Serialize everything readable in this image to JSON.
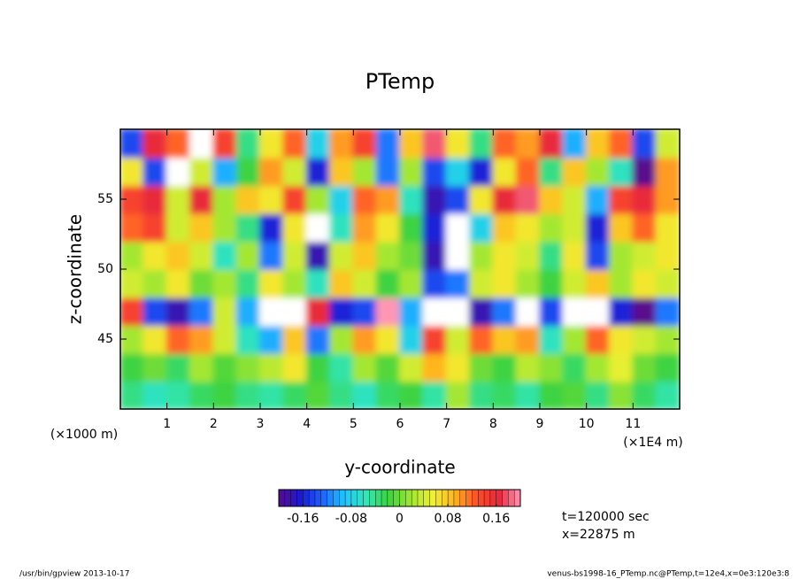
{
  "chart_data": {
    "type": "heatmap",
    "title": "PTemp",
    "x_label": "y-coordinate",
    "y_label": "z-coordinate",
    "x_unit": "(×1E4 m)",
    "y_unit": "(×1000 m)",
    "xlim": [
      0,
      12
    ],
    "ylim": [
      40,
      60
    ],
    "xticks": [
      1,
      2,
      3,
      4,
      5,
      6,
      7,
      8,
      9,
      10,
      11
    ],
    "yticks": [
      45,
      50,
      55
    ],
    "x": [
      0.25,
      0.75,
      1.25,
      1.75,
      2.25,
      2.75,
      3.25,
      3.75,
      4.25,
      4.75,
      5.25,
      5.75,
      6.25,
      6.75,
      7.25,
      7.75,
      8.25,
      8.75,
      9.25,
      9.75,
      10.25,
      10.75,
      11.25,
      11.75
    ],
    "y": [
      41,
      43,
      45,
      47,
      49,
      51,
      53,
      55,
      57,
      59
    ],
    "z": [
      [
        -0.04,
        -0.06,
        -0.05,
        -0.03,
        -0.02,
        -0.04,
        -0.05,
        -0.03,
        -0.01,
        -0.04,
        -0.06,
        -0.03,
        -0.02,
        -0.05,
        0.02,
        -0.04,
        -0.03,
        -0.05,
        -0.02,
        -0.01,
        -0.04,
        0.01,
        -0.03,
        -0.05
      ],
      [
        -0.02,
        0,
        -0.03,
        0.02,
        -0.01,
        0.01,
        0.03,
        0.06,
        -0.02,
        -0.05,
        0.02,
        -0.01,
        0.04,
        0.09,
        0.06,
        0,
        -0.02,
        0.03,
        0.01,
        -0.03,
        0.02,
        0.05,
        0,
        -0.02
      ],
      [
        0.02,
        0.06,
        0.12,
        0.1,
        0.04,
        -0.06,
        -0.1,
        0.08,
        -0.12,
        0.02,
        0.1,
        0.06,
        -0.08,
        0.14,
        0.04,
        0.12,
        0.08,
        0.1,
        -0.06,
        0.02,
        0.12,
        0.06,
        0.04,
        0.02
      ],
      [
        0.14,
        -0.14,
        -0.18,
        -0.12,
        0.04,
        -0.1,
        0.22,
        0.24,
        0.16,
        -0.16,
        -0.14,
        0.2,
        -0.1,
        0.22,
        0.24,
        -0.18,
        -0.12,
        0.22,
        -0.14,
        0.24,
        -0.22,
        -0.16,
        -0.2,
        -0.12
      ],
      [
        0.04,
        0.02,
        0.06,
        0,
        0.02,
        -0.04,
        0.06,
        0.02,
        -0.06,
        0.08,
        0.04,
        -0.02,
        0.02,
        -0.14,
        -0.12,
        0.04,
        0.06,
        0.02,
        -0.02,
        0.04,
        0.08,
        0.02,
        0.06,
        0.04
      ],
      [
        0.02,
        0.06,
        0.08,
        0.04,
        -0.06,
        0.02,
        -0.12,
        0.04,
        -0.18,
        0.04,
        0.08,
        0.02,
        0,
        -0.18,
        -0.24,
        0.02,
        0.06,
        0.04,
        -0.04,
        0.06,
        -0.14,
        0.02,
        0.04,
        0.06
      ],
      [
        0.12,
        0.14,
        0.04,
        0.08,
        0.02,
        -0.04,
        -0.16,
        0.06,
        -0.24,
        -0.06,
        0.1,
        0.06,
        -0.02,
        -0.16,
        -0.22,
        -0.08,
        0.08,
        0.06,
        0.02,
        0.04,
        -0.16,
        0.08,
        0.12,
        0.06
      ],
      [
        0.14,
        0.16,
        0.04,
        0.16,
        0.02,
        0.08,
        0.06,
        0.14,
        0.02,
        -0.08,
        0.12,
        0.1,
        -0.06,
        -0.18,
        -0.14,
        0.06,
        0.16,
        0.18,
        0.08,
        0.04,
        -0.1,
        0.14,
        0.16,
        0.1
      ],
      [
        0.06,
        -0.14,
        -0.22,
        0.04,
        -0.1,
        -0.02,
        0.1,
        0.04,
        -0.16,
        0.08,
        0.02,
        -0.12,
        0.02,
        -0.14,
        -0.08,
        -0.16,
        0.06,
        0.12,
        -0.04,
        0.08,
        0.02,
        -0.06,
        -0.2,
        0.1
      ],
      [
        -0.14,
        0.16,
        0.12,
        0.22,
        0.14,
        -0.04,
        0.06,
        0.12,
        -0.08,
        0.1,
        0.14,
        -0.12,
        0.08,
        0.18,
        0.06,
        -0.04,
        0.12,
        0.1,
        0.16,
        -0.1,
        0.08,
        0.12,
        -0.14,
        0.04
      ]
    ],
    "clim": [
      -0.2,
      0.2
    ],
    "contour_interval": 0.01,
    "cticks": [
      -0.16,
      -0.08,
      0,
      0.08,
      0.16
    ],
    "colors": [
      "#5a0a8c",
      "#1a1ad2",
      "#1e64ff",
      "#1ec8ff",
      "#32e6b4",
      "#3cd23c",
      "#a0e632",
      "#f0f032",
      "#ffb41e",
      "#ff5028",
      "#e6283c",
      "#ff96b4"
    ],
    "out_of_range_color": "#ffffff",
    "annotations": [
      "t=120000 sec",
      "x=22875 m"
    ],
    "footer_left": "/usr/bin/gpview  2013-10-17",
    "footer_right": "venus-bs1998-16_PTemp.nc@PTemp,t=12e4,x=0e3:120e3:8"
  }
}
